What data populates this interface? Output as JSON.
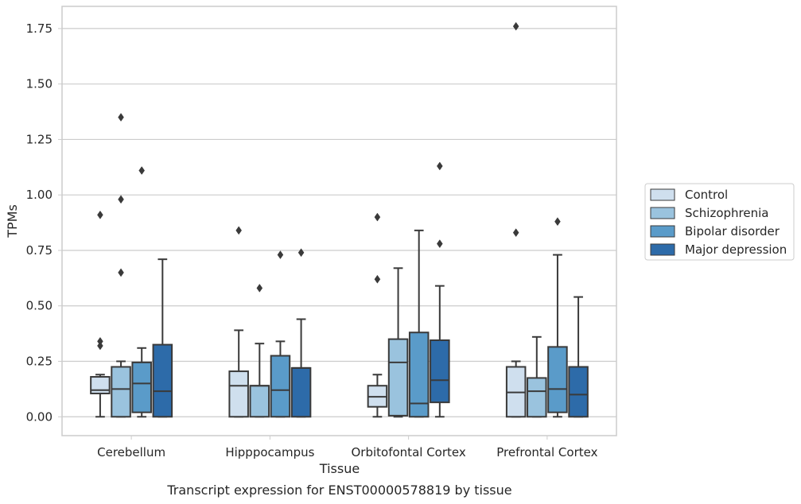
{
  "caption": "Transcript expression for ENST00000578819 by tissue",
  "chart_data": {
    "type": "box",
    "title": "",
    "xlabel": "Tissue",
    "ylabel": "TPMs",
    "ylim": [
      -0.085,
      1.85
    ],
    "yticks": [
      0.0,
      0.25,
      0.5,
      0.75,
      1.0,
      1.25,
      1.5,
      1.75
    ],
    "ytick_labels": [
      "0.00",
      "0.25",
      "0.50",
      "0.75",
      "1.00",
      "1.25",
      "1.50",
      "1.75"
    ],
    "grid": "horizontal",
    "legend_position": "right",
    "categories": [
      "Cerebellum",
      "Hipppocampus",
      "Orbitofontal Cortex",
      "Prefrontal Cortex"
    ],
    "series": [
      {
        "name": "Control",
        "color": "#cfdfee",
        "boxes": [
          {
            "whislo": 0.0,
            "q1": 0.105,
            "med": 0.12,
            "q3": 0.18,
            "whishi": 0.19,
            "fliers": [
              0.32,
              0.34,
              0.91
            ]
          },
          {
            "whislo": 0.0,
            "q1": 0.0,
            "med": 0.14,
            "q3": 0.205,
            "whishi": 0.39,
            "fliers": [
              0.84
            ]
          },
          {
            "whislo": 0.0,
            "q1": 0.045,
            "med": 0.09,
            "q3": 0.14,
            "whishi": 0.19,
            "fliers": [
              0.62,
              0.9
            ]
          },
          {
            "whislo": 0.0,
            "q1": 0.0,
            "med": 0.11,
            "q3": 0.225,
            "whishi": 0.25,
            "fliers": [
              0.83,
              1.76
            ]
          }
        ]
      },
      {
        "name": "Schizophrenia",
        "color": "#9ac3de",
        "boxes": [
          {
            "whislo": 0.0,
            "q1": 0.0,
            "med": 0.125,
            "q3": 0.225,
            "whishi": 0.25,
            "fliers": [
              0.65,
              0.98,
              1.35
            ]
          },
          {
            "whislo": 0.0,
            "q1": 0.0,
            "med": 0.14,
            "q3": 0.14,
            "whishi": 0.33,
            "fliers": [
              0.58
            ]
          },
          {
            "whislo": 0.0,
            "q1": 0.005,
            "med": 0.245,
            "q3": 0.35,
            "whishi": 0.67,
            "fliers": []
          },
          {
            "whislo": 0.0,
            "q1": 0.0,
            "med": 0.115,
            "q3": 0.175,
            "whishi": 0.36,
            "fliers": []
          }
        ]
      },
      {
        "name": "Bipolar disorder",
        "color": "#5a9bc9",
        "boxes": [
          {
            "whislo": 0.0,
            "q1": 0.02,
            "med": 0.15,
            "q3": 0.245,
            "whishi": 0.31,
            "fliers": [
              1.11
            ]
          },
          {
            "whislo": 0.0,
            "q1": 0.0,
            "med": 0.12,
            "q3": 0.275,
            "whishi": 0.34,
            "fliers": [
              0.73
            ]
          },
          {
            "whislo": 0.0,
            "q1": 0.0,
            "med": 0.06,
            "q3": 0.38,
            "whishi": 0.84,
            "fliers": []
          },
          {
            "whislo": 0.0,
            "q1": 0.02,
            "med": 0.125,
            "q3": 0.315,
            "whishi": 0.73,
            "fliers": [
              0.88
            ]
          }
        ]
      },
      {
        "name": "Major depression",
        "color": "#2d6ba9",
        "boxes": [
          {
            "whislo": 0.0,
            "q1": 0.0,
            "med": 0.115,
            "q3": 0.325,
            "whishi": 0.71,
            "fliers": []
          },
          {
            "whislo": 0.0,
            "q1": 0.0,
            "med": 0.22,
            "q3": 0.22,
            "whishi": 0.44,
            "fliers": [
              0.74
            ]
          },
          {
            "whislo": 0.0,
            "q1": 0.065,
            "med": 0.165,
            "q3": 0.345,
            "whishi": 0.59,
            "fliers": [
              0.78,
              1.13
            ]
          },
          {
            "whislo": 0.0,
            "q1": 0.0,
            "med": 0.1,
            "q3": 0.225,
            "whishi": 0.54,
            "fliers": []
          }
        ]
      }
    ]
  }
}
